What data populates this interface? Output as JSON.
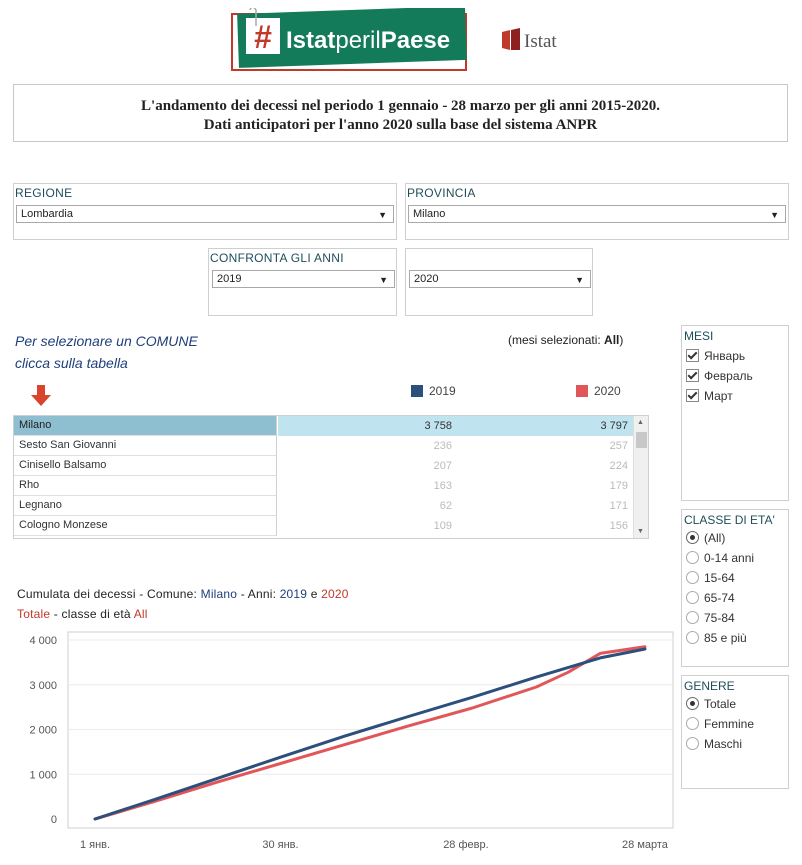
{
  "header": {
    "logo_text_1": "Istat",
    "logo_text_2": "per",
    "logo_text_3": "il",
    "logo_text_4": "Paese",
    "istat_logo_text": "Istat",
    "title_line1": "L'andamento dei decessi nel periodo 1 gennaio - 28 marzo per gli anni 2015-2020.",
    "title_line2": "Dati anticipatori per l'anno 2020 sulla base del sistema ANPR"
  },
  "filters": {
    "regione_label": "REGIONE",
    "regione_value": "Lombardia",
    "provincia_label": "PROVINCIA",
    "provincia_value": "Milano",
    "confronta_label": "CONFRONTA GLI ANNI",
    "year1": "2019",
    "year2": "2020"
  },
  "hint": {
    "line1": "Per selezionare un COMUNE",
    "line2": "clicca sulla tabella",
    "mesi_prefix": "(mesi selezionati: ",
    "mesi_value": "All",
    "mesi_suffix": ")"
  },
  "legend": {
    "y1": "2019",
    "y2": "2020",
    "color_2019": "#2c4f7c",
    "color_2020": "#e15759"
  },
  "table": {
    "rows": [
      {
        "comune": "Milano",
        "v2019": "3 758",
        "v2020": "3 797"
      },
      {
        "comune": "Sesto San Giovanni",
        "v2019": "236",
        "v2020": "257"
      },
      {
        "comune": "Cinisello Balsamo",
        "v2019": "207",
        "v2020": "224"
      },
      {
        "comune": "Rho",
        "v2019": "163",
        "v2020": "179"
      },
      {
        "comune": "Legnano",
        "v2019": "62",
        "v2020": "171"
      },
      {
        "comune": "Cologno Monzese",
        "v2019": "109",
        "v2020": "156"
      }
    ]
  },
  "mesi_panel": {
    "label": "MESI",
    "items": [
      "Январь",
      "Февраль",
      "Март"
    ]
  },
  "classe_panel": {
    "label": "CLASSE DI ETA'",
    "items": [
      "(All)",
      "0-14 anni",
      "15-64",
      "65-74",
      "75-84",
      "85 e più"
    ],
    "selected_index": 0
  },
  "genere_panel": {
    "label": "GENERE",
    "items": [
      "Totale",
      "Femmine",
      "Maschi"
    ],
    "selected_index": 0
  },
  "chart_caption": {
    "p1": "Cumulata dei decessi -  Comune: ",
    "comune": "Milano",
    "p2": "  -  Anni: ",
    "y1": "2019",
    "p3": " e ",
    "y2": "2020",
    "line2_a": "Totale",
    "line2_b": " - classe di età  ",
    "line2_c": "All"
  },
  "chart_data": {
    "type": "line",
    "x_ticks": [
      "1 янв.",
      "30 янв.",
      "28 февр.",
      "28 марта"
    ],
    "y_ticks": [
      "0",
      "1 000",
      "2 000",
      "3 000",
      "4 000"
    ],
    "ylim": [
      0,
      4000
    ],
    "x_range_days": [
      1,
      87
    ],
    "grid": true,
    "series": [
      {
        "name": "2019",
        "color": "#2c4f7c",
        "x": [
          1,
          10,
          20,
          30,
          40,
          50,
          60,
          70,
          80,
          87
        ],
        "values": [
          0,
          420,
          900,
          1380,
          1850,
          2290,
          2720,
          3170,
          3600,
          3800
        ]
      },
      {
        "name": "2020",
        "color": "#e15759",
        "x": [
          1,
          10,
          20,
          30,
          40,
          50,
          60,
          70,
          75,
          80,
          87
        ],
        "values": [
          0,
          380,
          820,
          1240,
          1660,
          2080,
          2480,
          2950,
          3280,
          3700,
          3850
        ]
      }
    ]
  }
}
